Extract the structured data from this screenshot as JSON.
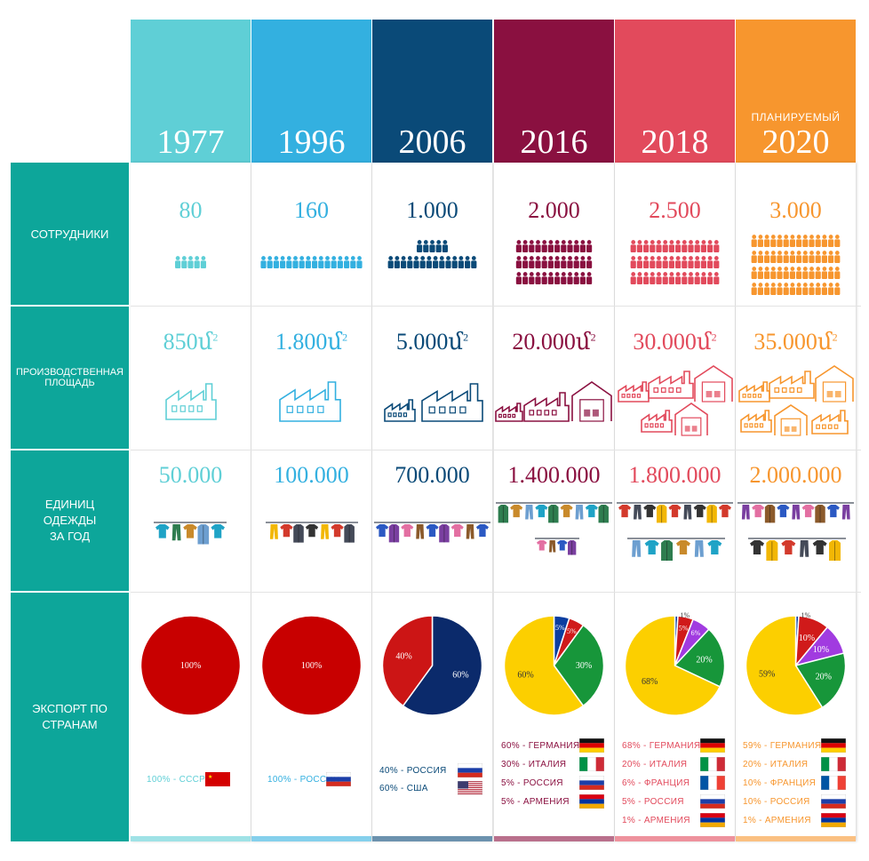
{
  "row_labels": {
    "employees": "СОТРУДНИКИ",
    "area": "ПРОИЗВОДСТВЕННАЯ\nПЛОЩАДЬ",
    "units": "ЕДИНИЦ\nОДЕЖДЫ\nЗА ГОД",
    "export": "ЭКСПОРТ ПО\nСТРАНАМ"
  },
  "area_unit": "մ",
  "area_exp": "2",
  "columns": [
    {
      "year": "1977",
      "planned": "",
      "color": "#5fcfd6",
      "employees": "80",
      "area": "850",
      "units": "50.000",
      "export": [
        {
          "label": "100% - СССР",
          "value": 100,
          "color": "#c80000",
          "flag": "ussr-flag-icon"
        }
      ]
    },
    {
      "year": "1996",
      "planned": "",
      "color": "#33b0e0",
      "employees": "160",
      "area": "1.800",
      "units": "100.000",
      "export": [
        {
          "label": "100% - РОССИЯ",
          "value": 100,
          "color": "#c80000",
          "flag": "russia-flag-icon"
        }
      ]
    },
    {
      "year": "2006",
      "planned": "",
      "color": "#0a4a78",
      "employees": "1.000",
      "area": "5.000",
      "units": "700.000",
      "export": [
        {
          "label": "40% - РОССИЯ",
          "value": 40,
          "color": "#cc1515",
          "flag": "russia-flag-icon"
        },
        {
          "label": "60% - США",
          "value": 60,
          "color": "#0b2a6b",
          "flag": "usa-flag-icon"
        }
      ]
    },
    {
      "year": "2016",
      "planned": "",
      "color": "#8a1040",
      "employees": "2.000",
      "area": "20.000",
      "units": "1.400.000",
      "export": [
        {
          "label": "60% - ГЕРМАНИЯ",
          "value": 60,
          "color": "#fccf00",
          "flag": "germany-flag-icon"
        },
        {
          "label": "30% - ИТАЛИЯ",
          "value": 30,
          "color": "#17963a",
          "flag": "italy-flag-icon"
        },
        {
          "label": "5% - РОССИЯ",
          "value": 5,
          "color": "#d01a1a",
          "flag": "russia-flag-icon"
        },
        {
          "label": "5% - АРМЕНИЯ",
          "value": 5,
          "color": "#0b3ea0",
          "flag": "armenia-flag-icon"
        }
      ]
    },
    {
      "year": "2018",
      "planned": "",
      "color": "#e24a5c",
      "employees": "2.500",
      "area": "30.000",
      "units": "1.800.000",
      "export": [
        {
          "label": "68% - ГЕРМАНИЯ",
          "value": 68,
          "color": "#fccf00",
          "flag": "germany-flag-icon"
        },
        {
          "label": "20% - ИТАЛИЯ",
          "value": 20,
          "color": "#17963a",
          "flag": "italy-flag-icon"
        },
        {
          "label": "6% - ФРАНЦИЯ",
          "value": 6,
          "color": "#a13be0",
          "flag": "france-flag-icon"
        },
        {
          "label": "5% - РОССИЯ",
          "value": 5,
          "color": "#d01a1a",
          "flag": "russia-flag-icon"
        },
        {
          "label": "1% - АРМЕНИЯ",
          "value": 1,
          "color": "#0b3ea0",
          "flag": "armenia-flag-icon"
        }
      ]
    },
    {
      "year": "2020",
      "planned": "ПЛАНИРУЕМЫЙ",
      "color": "#f7962e",
      "employees": "3.000",
      "area": "35.000",
      "units": "2.000.000",
      "export": [
        {
          "label": "59% - ГЕРМАНИЯ",
          "value": 59,
          "color": "#fccf00",
          "flag": "germany-flag-icon"
        },
        {
          "label": "20% - ИТАЛИЯ",
          "value": 20,
          "color": "#17963a",
          "flag": "italy-flag-icon"
        },
        {
          "label": "10% - ФРАНЦИЯ",
          "value": 10,
          "color": "#a13be0",
          "flag": "france-flag-icon"
        },
        {
          "label": "10% - РОССИЯ",
          "value": 10,
          "color": "#d01a1a",
          "flag": "russia-flag-icon"
        },
        {
          "label": "1% - АРМЕНИЯ",
          "value": 1,
          "color": "#0b3ea0",
          "flag": "armenia-flag-icon"
        }
      ]
    }
  ]
}
